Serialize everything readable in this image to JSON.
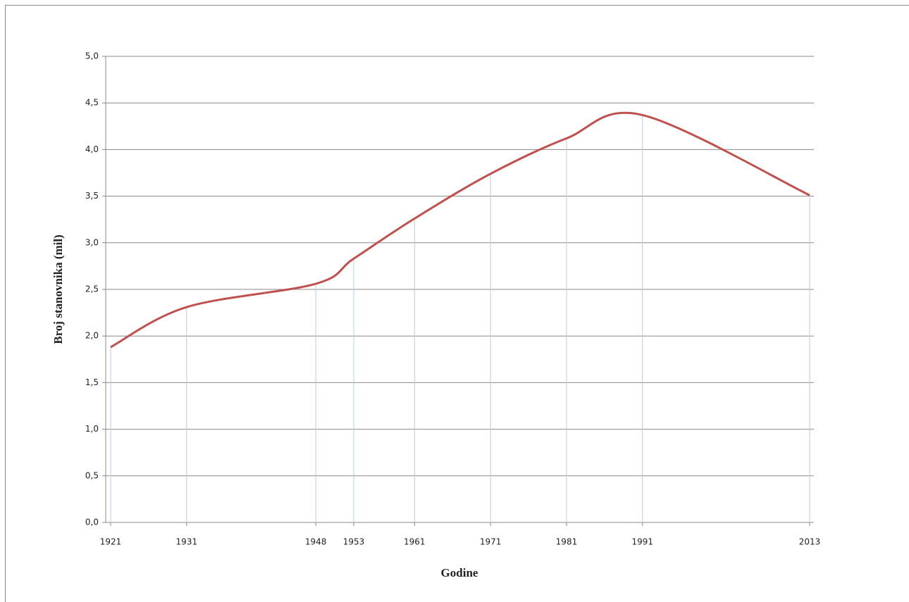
{
  "chart_data": {
    "type": "line",
    "x_label": "Godine",
    "y_label": "Broj stanovnika (mil)",
    "x": [
      1921,
      1931,
      1948,
      1953,
      1961,
      1971,
      1981,
      1991,
      2013
    ],
    "series": [
      {
        "name": "Broj stanovnika",
        "color": "#c0504d",
        "values": [
          1.88,
          2.31,
          2.56,
          2.83,
          3.26,
          3.74,
          4.12,
          4.37,
          3.51
        ]
      }
    ],
    "xlim": [
      1921,
      2013
    ],
    "xticks": [
      1921,
      1931,
      1948,
      1953,
      1961,
      1971,
      1981,
      1991,
      2013
    ],
    "ylim": [
      0,
      5
    ],
    "yticks": [
      {
        "value": 0,
        "label": "0,0"
      },
      {
        "value": 0.5,
        "label": "0,5"
      },
      {
        "value": 1,
        "label": "1,0"
      },
      {
        "value": 1.5,
        "label": "1,5"
      },
      {
        "value": 2,
        "label": "2,0"
      },
      {
        "value": 2.5,
        "label": "2,5"
      },
      {
        "value": 3,
        "label": "3,0"
      },
      {
        "value": 3.5,
        "label": "3,5"
      },
      {
        "value": 4,
        "label": "4,0"
      },
      {
        "value": 4.5,
        "label": "4,5"
      },
      {
        "value": 5,
        "label": "5,0"
      }
    ],
    "grid": true,
    "smooth": true,
    "drop_lines": true
  }
}
